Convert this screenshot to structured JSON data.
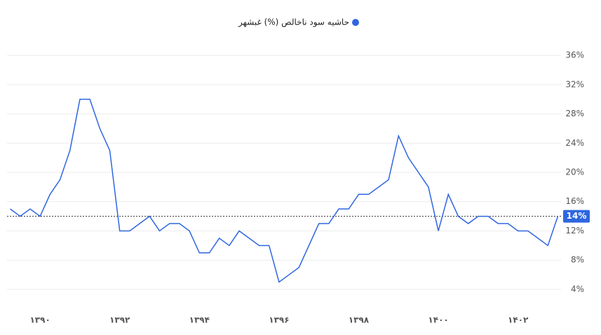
{
  "chart_data": {
    "type": "line",
    "series": [
      {
        "name": "حاشیه سود ناخالص (%) غبشهر",
        "color": "#2f66e0",
        "x": [
          1389.25,
          1389.5,
          1389.75,
          1390,
          1390.25,
          1390.5,
          1390.75,
          1391,
          1391.25,
          1391.5,
          1391.75,
          1392,
          1392.25,
          1392.5,
          1392.75,
          1393,
          1393.25,
          1393.5,
          1393.75,
          1394,
          1394.25,
          1394.5,
          1394.75,
          1395,
          1395.25,
          1395.5,
          1395.75,
          1396,
          1396.25,
          1396.5,
          1396.75,
          1397,
          1397.25,
          1397.5,
          1397.75,
          1398,
          1398.25,
          1398.5,
          1398.75,
          1399,
          1399.25,
          1399.5,
          1399.75,
          1400,
          1400.25,
          1400.5,
          1400.75,
          1401,
          1401.25,
          1401.5,
          1401.75,
          1402,
          1402.25,
          1402.5,
          1402.75,
          1403
        ],
        "values": [
          15,
          14,
          15,
          14,
          17,
          19,
          23,
          30,
          30,
          26,
          23,
          12,
          12,
          13,
          14,
          12,
          13,
          13,
          12,
          9,
          9,
          11,
          10,
          12,
          11,
          10,
          10,
          5,
          6,
          7,
          10,
          13,
          13,
          15,
          15,
          17,
          17,
          18,
          19,
          25,
          22,
          20,
          18,
          12,
          17,
          14,
          13,
          14,
          14,
          13,
          13,
          12,
          12,
          11,
          10,
          14
        ]
      }
    ],
    "xlim": [
      1389.17,
      1403.08
    ],
    "xticks": [
      {
        "value": 1390,
        "label": "۱۳۹۰"
      },
      {
        "value": 1392,
        "label": "۱۳۹۲"
      },
      {
        "value": 1394,
        "label": "۱۳۹۴"
      },
      {
        "value": 1396,
        "label": "۱۳۹۶"
      },
      {
        "value": 1398,
        "label": "۱۳۹۸"
      },
      {
        "value": 1400,
        "label": "۱۴۰۰"
      },
      {
        "value": 1402,
        "label": "۱۴۰۲"
      }
    ],
    "ylim": [
      1.5,
      38.5
    ],
    "yticks": [
      {
        "value": 4,
        "label": "4%"
      },
      {
        "value": 8,
        "label": "8%"
      },
      {
        "value": 12,
        "label": "12%"
      },
      {
        "value": 16,
        "label": "16%"
      },
      {
        "value": 20,
        "label": "20%"
      },
      {
        "value": 24,
        "label": "24%"
      },
      {
        "value": 28,
        "label": "28%"
      },
      {
        "value": 32,
        "label": "32%"
      },
      {
        "value": 36,
        "label": "36%"
      }
    ],
    "grid": true,
    "reference": {
      "value": 14,
      "label": "14%"
    }
  }
}
